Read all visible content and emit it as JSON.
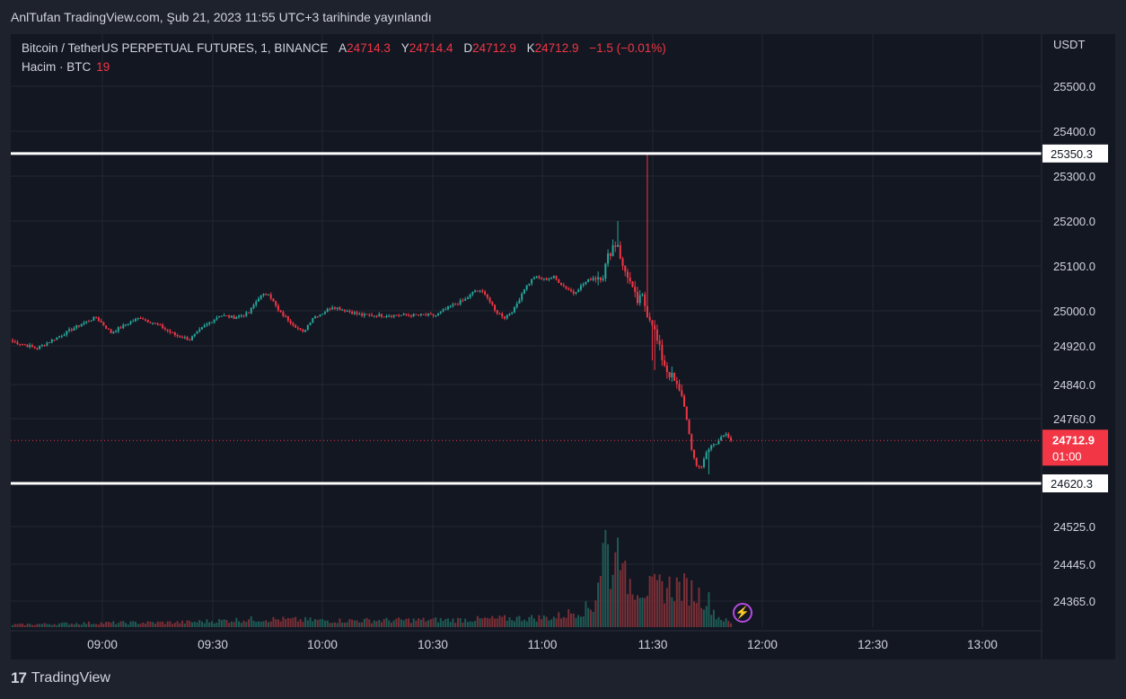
{
  "header": {
    "caption": "AnlTufan TradingView.com, Şub 21, 2023 11:55 UTC+3 tarihinde yayınlandı"
  },
  "legend": {
    "symbol": "Bitcoin / TetherUS PERPETUAL FUTURES, 1, BINANCE",
    "open_label": "A",
    "open": "24714.3",
    "high_label": "Y",
    "high": "24714.4",
    "low_label": "D",
    "low": "24712.9",
    "close_label": "K",
    "close": "24712.9",
    "change": "−1.5 (−0.01%)",
    "volume_label": "Hacim · BTC",
    "volume": "19"
  },
  "footer": {
    "brand": "TradingView",
    "logo": "17"
  },
  "colors": {
    "up": "#26a69a",
    "down": "#f23645",
    "background": "#131722",
    "grid": "#232732",
    "axis_text": "#d1d4dc",
    "level_line": "#ffffff"
  },
  "chart_data": {
    "type": "candlestick",
    "price_axis_label": "USDT",
    "price_ticks": [
      25500.0,
      25400.0,
      25300.0,
      25200.0,
      25100.0,
      25000.0,
      24920.0,
      24840.0,
      24760.0,
      24525.0,
      24445.0,
      24365.0
    ],
    "price_tick_labels": [
      "25500.0",
      "25400.0",
      "25300.0",
      "25200.0",
      "25100.0",
      "25000.0",
      "24920.0",
      "24840.0",
      "24760.0",
      "24525.0",
      "24445.0",
      "24365.0"
    ],
    "time_ticks": [
      "09:00",
      "09:30",
      "10:00",
      "10:30",
      "11:00",
      "11:30",
      "12:00",
      "12:30",
      "13:00"
    ],
    "levels": [
      {
        "price": 25350.3,
        "label": "25350.3"
      },
      {
        "price": 24620.3,
        "label": "24620.3"
      }
    ],
    "last_price": {
      "price": 24712.9,
      "label": "24712.9",
      "countdown": "01:00"
    },
    "anchors": [
      [
        0,
        24930
      ],
      [
        10,
        24915
      ],
      [
        20,
        24945
      ],
      [
        28,
        24970
      ],
      [
        34,
        24985
      ],
      [
        40,
        24950
      ],
      [
        48,
        24975
      ],
      [
        52,
        24985
      ],
      [
        60,
        24965
      ],
      [
        66,
        24945
      ],
      [
        72,
        24935
      ],
      [
        78,
        24965
      ],
      [
        84,
        24990
      ],
      [
        90,
        24985
      ],
      [
        96,
        24995
      ],
      [
        100,
        25030
      ],
      [
        104,
        25040
      ],
      [
        108,
        25000
      ],
      [
        114,
        24970
      ],
      [
        118,
        24950
      ],
      [
        122,
        24985
      ],
      [
        126,
        24995
      ],
      [
        130,
        25010
      ],
      [
        136,
        25000
      ],
      [
        142,
        24990
      ],
      [
        150,
        24990
      ],
      [
        158,
        24990
      ],
      [
        166,
        24990
      ],
      [
        172,
        24990
      ],
      [
        178,
        25010
      ],
      [
        184,
        25025
      ],
      [
        188,
        25045
      ],
      [
        192,
        25040
      ],
      [
        196,
        25000
      ],
      [
        200,
        24985
      ],
      [
        204,
        25005
      ],
      [
        208,
        25050
      ],
      [
        212,
        25075
      ],
      [
        216,
        25070
      ],
      [
        220,
        25075
      ],
      [
        224,
        25055
      ],
      [
        228,
        25040
      ],
      [
        232,
        25060
      ],
      [
        236,
        25075
      ],
      [
        240,
        25080
      ],
      [
        242,
        25120
      ],
      [
        244,
        25145
      ],
      [
        246,
        25150
      ],
      [
        248,
        25095
      ],
      [
        250,
        25080
      ],
      [
        252,
        25045
      ],
      [
        254,
        25020
      ],
      [
        256,
        25030
      ],
      [
        258,
        24995
      ],
      [
        260,
        24975
      ],
      [
        262,
        24930
      ],
      [
        264,
        24895
      ],
      [
        266,
        24870
      ],
      [
        268,
        24855
      ],
      [
        270,
        24835
      ],
      [
        272,
        24815
      ],
      [
        274,
        24760
      ],
      [
        276,
        24690
      ],
      [
        278,
        24660
      ],
      [
        280,
        24655
      ],
      [
        282,
        24690
      ],
      [
        284,
        24700
      ],
      [
        286,
        24705
      ],
      [
        288,
        24720
      ],
      [
        290,
        24730
      ],
      [
        292,
        24713
      ]
    ],
    "volume_anchors": [
      [
        0,
        3
      ],
      [
        30,
        5
      ],
      [
        70,
        6
      ],
      [
        100,
        10
      ],
      [
        130,
        8
      ],
      [
        180,
        9
      ],
      [
        220,
        12
      ],
      [
        236,
        25
      ],
      [
        241,
        110
      ],
      [
        243,
        70
      ],
      [
        245,
        78
      ],
      [
        246,
        170
      ],
      [
        247,
        112
      ],
      [
        248,
        60
      ],
      [
        252,
        55
      ],
      [
        260,
        45
      ],
      [
        262,
        48
      ],
      [
        270,
        50
      ],
      [
        276,
        45
      ],
      [
        283,
        32
      ],
      [
        286,
        14
      ],
      [
        292,
        5
      ]
    ]
  }
}
